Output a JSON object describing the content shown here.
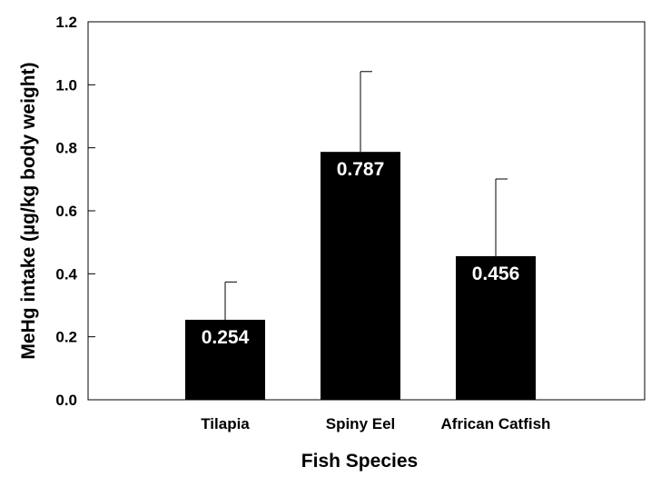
{
  "chart_data": {
    "type": "bar",
    "title": "",
    "xlabel": "Fish Species",
    "ylabel": "MeHg intake (µg/kg body weight)",
    "categories": [
      "Tilapia",
      "Spiny Eel",
      "African Catfish"
    ],
    "values": [
      0.254,
      0.787,
      0.456
    ],
    "value_labels": [
      "0.254",
      "0.787",
      "0.456"
    ],
    "error_upper": [
      0.12,
      0.255,
      0.245
    ],
    "ylim": [
      0,
      1.2
    ],
    "yticks": [
      0.0,
      0.2,
      0.4,
      0.6,
      0.8,
      1.0,
      1.2
    ],
    "ytick_labels": [
      "0.0",
      "0.2",
      "0.4",
      "0.6",
      "0.8",
      "1.0",
      "1.2"
    ],
    "grid": false,
    "legend": "none",
    "colors": {
      "bar": "#000000",
      "data_label": "#ffffff",
      "axis": "#000000"
    }
  }
}
